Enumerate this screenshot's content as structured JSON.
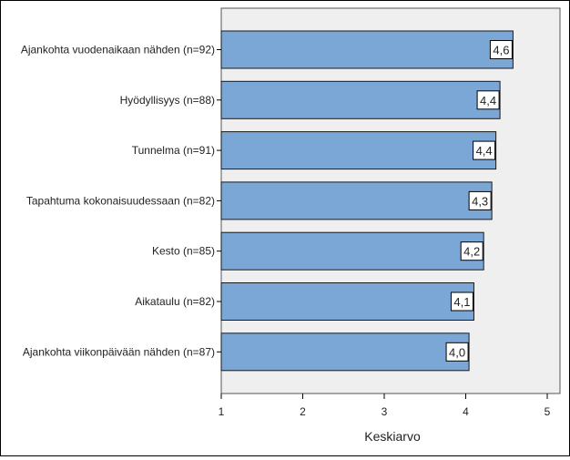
{
  "chart_data": {
    "type": "bar",
    "orientation": "horizontal",
    "categories": [
      "Ajankohta vuodenaikaan nähden (n=92)",
      "Hyödyllisyys (n=88)",
      "Tunnelma (n=91)",
      "Tapahtuma kokonaisuudessaan (n=82)",
      "Kesto (n=85)",
      "Aikataulu (n=82)",
      "Ajankohta viikonpäivään nähden (n=87)"
    ],
    "values": [
      4.58,
      4.42,
      4.37,
      4.32,
      4.22,
      4.1,
      4.04
    ],
    "value_labels": [
      "4,6",
      "4,4",
      "4,4",
      "4,3",
      "4,2",
      "4,1",
      "4,0"
    ],
    "xlabel": "Keskiarvo",
    "ylabel": "",
    "xlim": [
      1,
      5
    ],
    "xticks": [
      1,
      2,
      3,
      4,
      5
    ],
    "xtick_labels": [
      "1",
      "2",
      "3",
      "4",
      "5"
    ],
    "grid": false,
    "bar_color": "#7ba7d6",
    "bar_edge_color": "#1a1a1a",
    "plot_background": "#efefef"
  }
}
